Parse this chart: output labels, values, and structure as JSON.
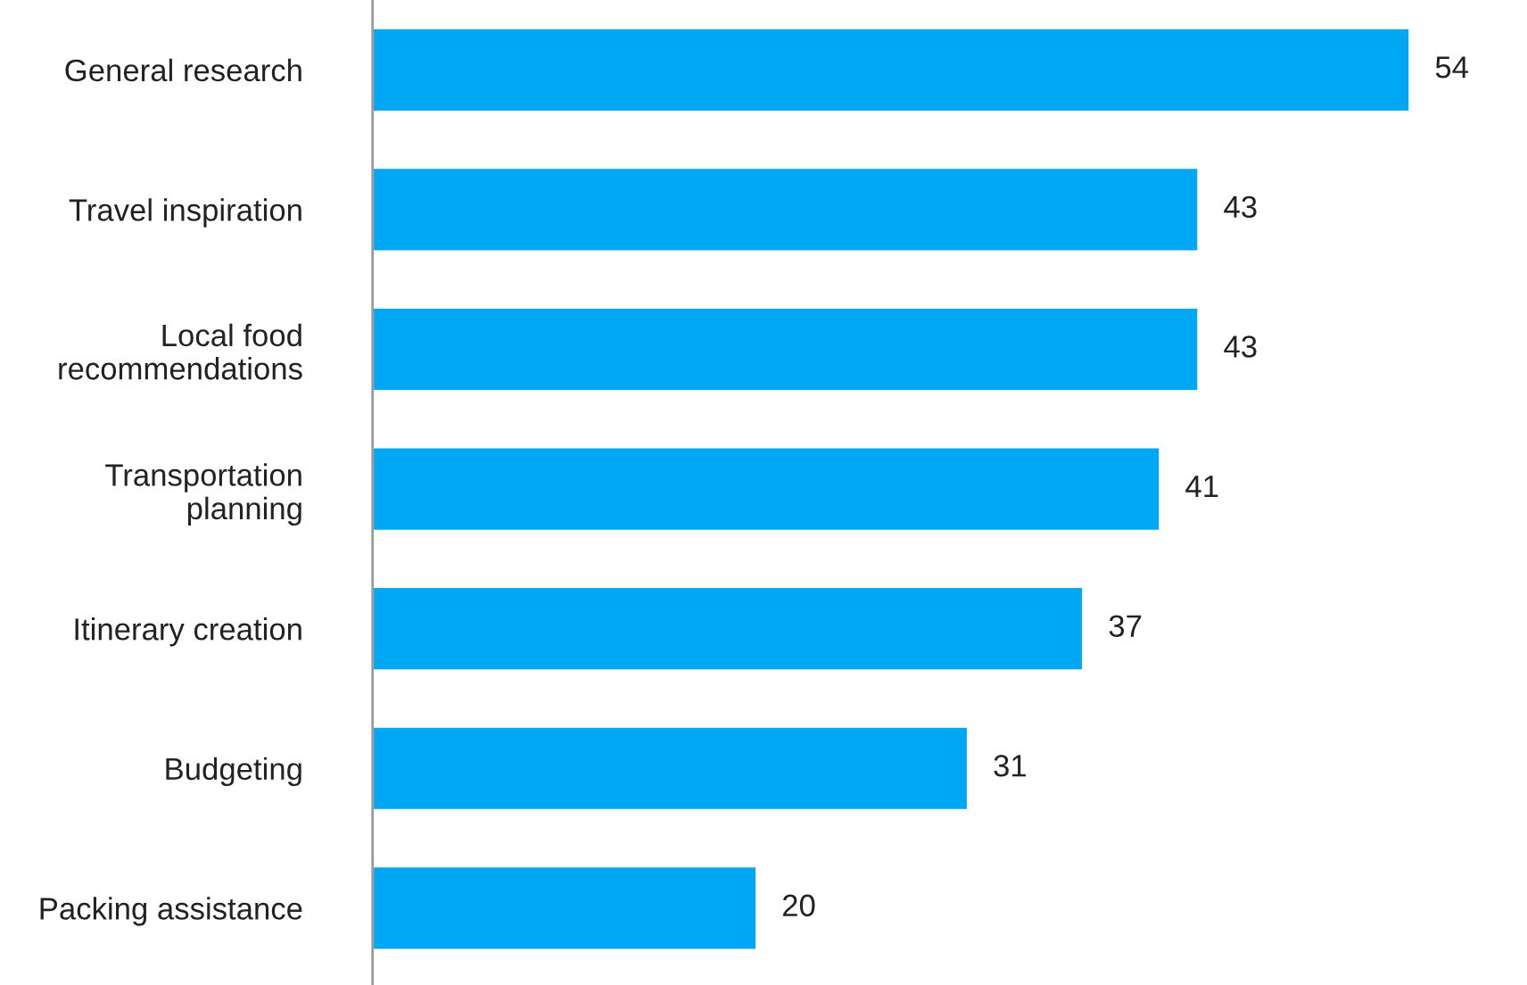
{
  "chart_data": {
    "type": "bar",
    "orientation": "horizontal",
    "categories": [
      "General research",
      "Travel inspiration",
      "Local food\nrecommendations",
      "Transportation\nplanning",
      "Itinerary creation",
      "Budgeting",
      "Packing assistance"
    ],
    "values": [
      54,
      43,
      43,
      41,
      37,
      31,
      20
    ],
    "color": "#00a8f3",
    "data_labels": true,
    "grid": false,
    "legend": false,
    "tick_labels": "y"
  }
}
